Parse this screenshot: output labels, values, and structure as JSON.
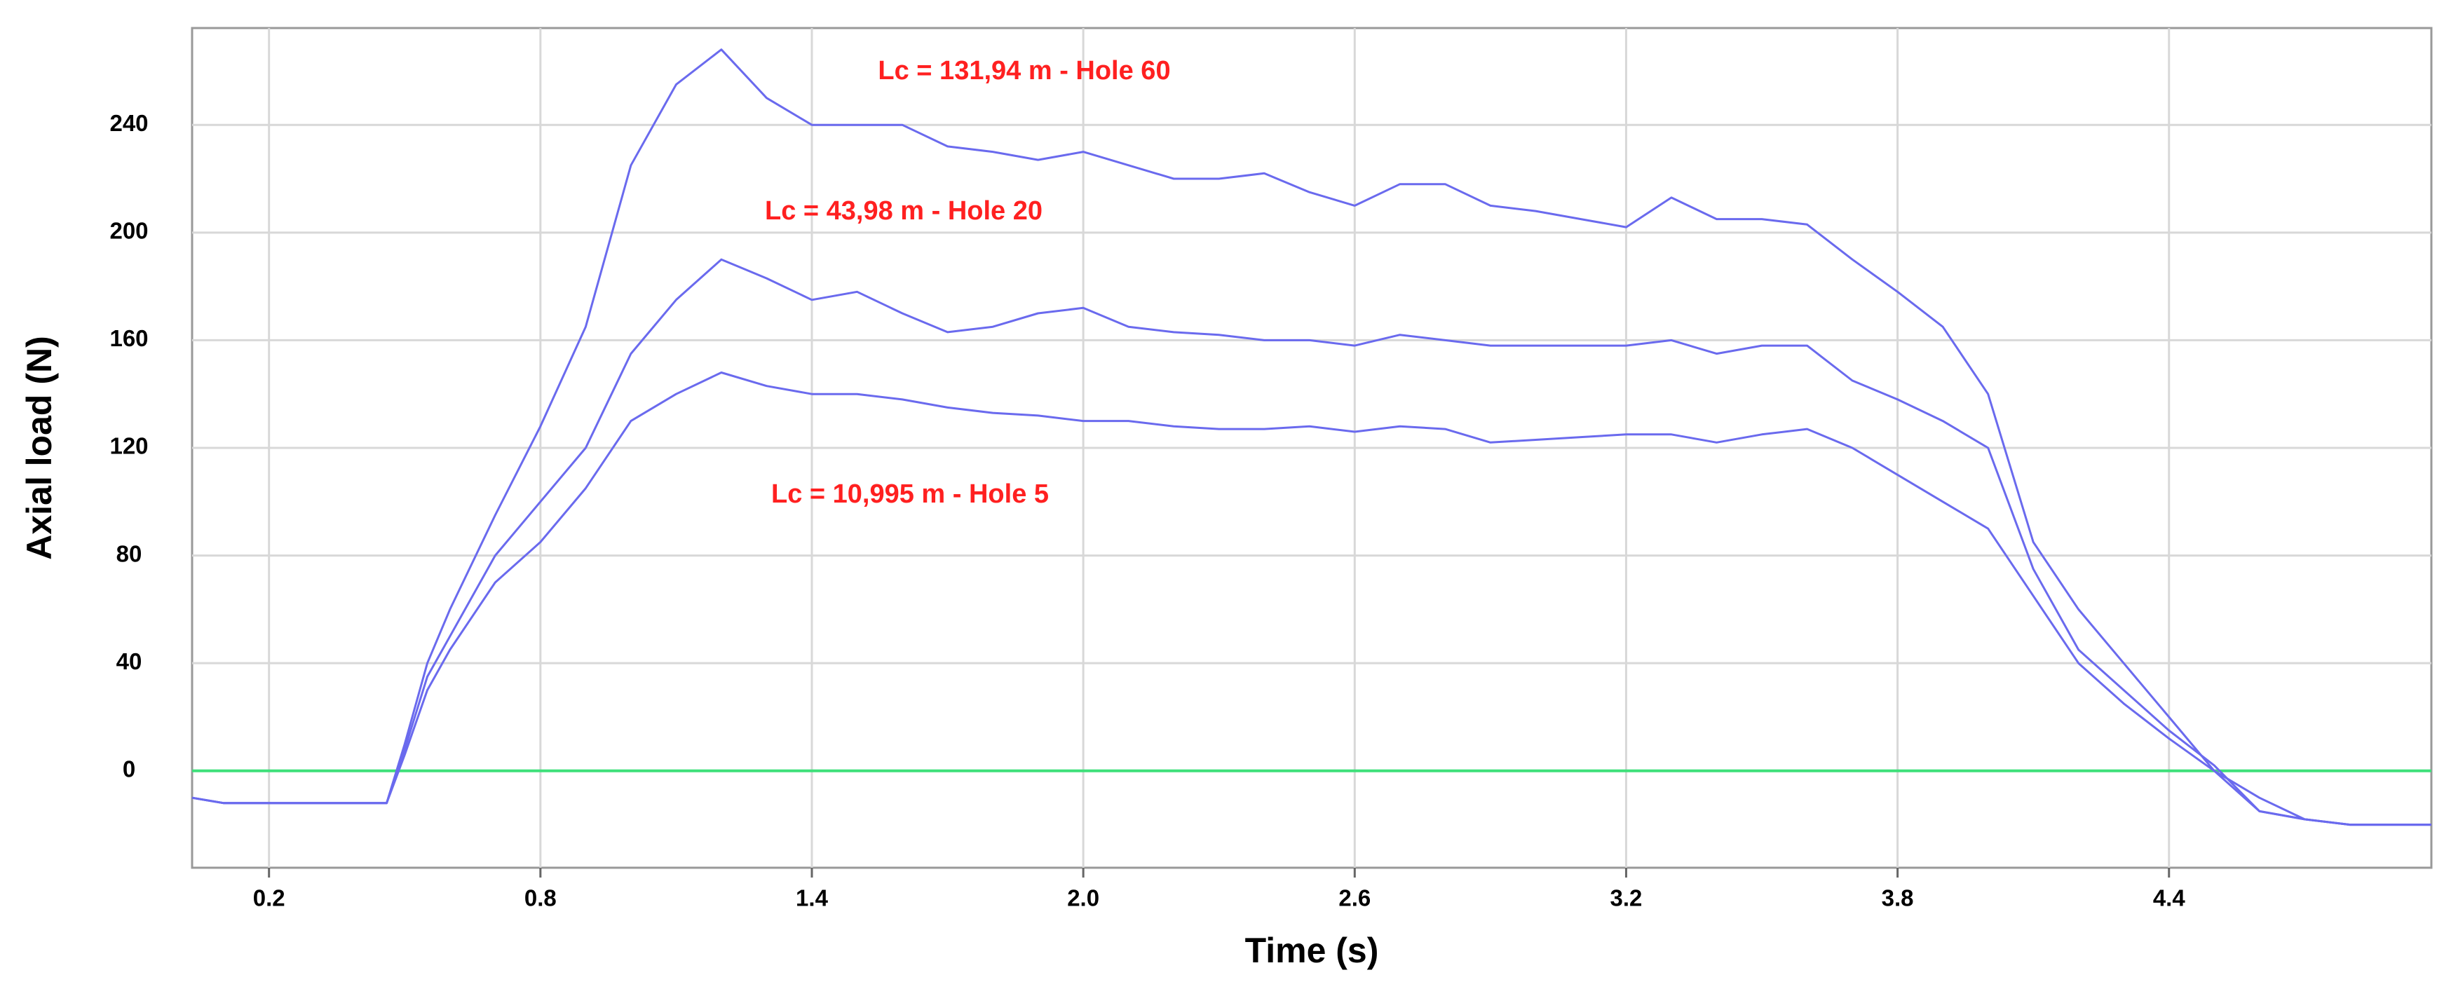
{
  "chart_data": {
    "type": "line",
    "xlabel": "Time (s)",
    "ylabel": "Axial load (N)",
    "annotations": [
      "Lc = 131,94 m - Hole 60",
      "Lc = 43,98 m - Hole 20",
      "Lc = 10,995 m - Hole 5"
    ],
    "x": [
      0.03,
      0.1,
      0.2,
      0.3,
      0.4,
      0.46,
      0.5,
      0.55,
      0.6,
      0.7,
      0.8,
      0.9,
      1.0,
      1.1,
      1.2,
      1.3,
      1.4,
      1.5,
      1.6,
      1.7,
      1.8,
      1.9,
      2.0,
      2.1,
      2.2,
      2.3,
      2.4,
      2.5,
      2.6,
      2.7,
      2.8,
      2.9,
      3.0,
      3.1,
      3.2,
      3.3,
      3.4,
      3.5,
      3.6,
      3.7,
      3.8,
      3.9,
      4.0,
      4.1,
      4.2,
      4.3,
      4.4,
      4.5,
      4.6,
      4.7,
      4.8,
      4.9,
      4.98
    ],
    "series": [
      {
        "color": "#6a6aee",
        "values": [
          -10,
          -12,
          -12,
          -12,
          -12,
          -12,
          10,
          40,
          60,
          95,
          128,
          165,
          225,
          255,
          268,
          250,
          240,
          240,
          240,
          232,
          230,
          227,
          230,
          225,
          220,
          220,
          222,
          215,
          210,
          218,
          218,
          210,
          208,
          205,
          202,
          213,
          205,
          205,
          203,
          190,
          178,
          165,
          140,
          85,
          60,
          40,
          20,
          0,
          -15,
          -18,
          -20,
          -20,
          -20
        ]
      },
      {
        "color": "#6a6aee",
        "values": [
          -10,
          -12,
          -12,
          -12,
          -12,
          -12,
          8,
          35,
          50,
          80,
          100,
          120,
          155,
          175,
          190,
          183,
          175,
          178,
          170,
          163,
          165,
          170,
          172,
          165,
          163,
          162,
          160,
          160,
          158,
          162,
          160,
          158,
          158,
          158,
          158,
          160,
          155,
          158,
          158,
          145,
          138,
          130,
          120,
          75,
          45,
          30,
          15,
          2,
          -15,
          -18,
          -20,
          -20,
          -20
        ]
      },
      {
        "color": "#6a6aee",
        "values": [
          -10,
          -12,
          -12,
          -12,
          -12,
          -12,
          6,
          30,
          45,
          70,
          85,
          105,
          130,
          140,
          148,
          143,
          140,
          140,
          138,
          135,
          133,
          132,
          130,
          130,
          128,
          127,
          127,
          128,
          126,
          128,
          127,
          122,
          123,
          124,
          125,
          125,
          122,
          125,
          127,
          120,
          110,
          100,
          90,
          65,
          40,
          25,
          12,
          0,
          -10,
          -18,
          -20,
          -20,
          -20
        ]
      }
    ],
    "hlines": [
      {
        "value": 0,
        "color": "#3ee07a"
      }
    ],
    "xlim": [
      0.03,
      4.98
    ],
    "ylim": [
      -36,
      276
    ],
    "xticks": [
      0.2,
      0.8,
      1.4,
      {
        "value": 2,
        "label": "2.0"
      },
      2.6,
      3.2,
      3.8,
      4.4
    ],
    "yticks": [
      0,
      40,
      80,
      120,
      160,
      200,
      240
    ],
    "grid": true
  }
}
